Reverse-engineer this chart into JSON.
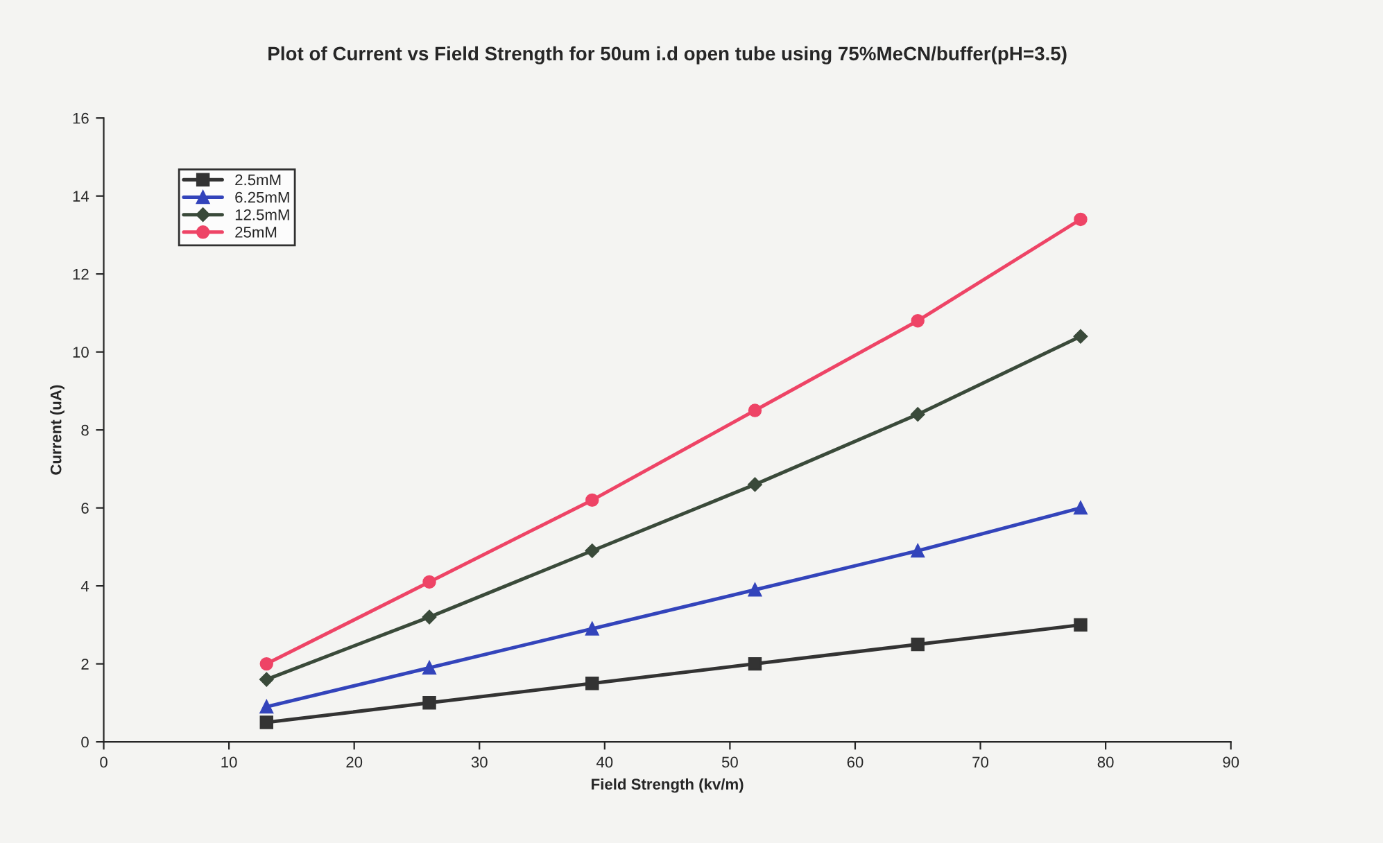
{
  "chart_data": {
    "type": "line",
    "title": "Plot of Current vs Field Strength for 50um i.d open tube using 75%MeCN/buffer(pH=3.5)",
    "xlabel": "Field Strength (kv/m)",
    "ylabel": "Current (uA)",
    "x": [
      13,
      26,
      39,
      52,
      65,
      78
    ],
    "series": [
      {
        "name": "2.5mM",
        "color": "#333333",
        "marker": "square",
        "values": [
          0.5,
          1.0,
          1.5,
          2.0,
          2.5,
          3.0
        ]
      },
      {
        "name": "6.25mM",
        "color": "#3344bb",
        "marker": "triangle",
        "values": [
          0.9,
          1.9,
          2.9,
          3.9,
          4.9,
          6.0
        ]
      },
      {
        "name": "12.5mM",
        "color": "#3a4a3a",
        "marker": "diamond",
        "values": [
          1.6,
          3.2,
          4.9,
          6.6,
          8.4,
          10.4
        ]
      },
      {
        "name": "25mM",
        "color": "#ee4466",
        "marker": "circle",
        "values": [
          2.0,
          4.1,
          6.2,
          8.5,
          10.8,
          13.4
        ]
      }
    ],
    "xlim": [
      0,
      90
    ],
    "xticks": [
      0,
      10,
      20,
      30,
      40,
      50,
      60,
      70,
      80,
      90
    ],
    "ylim": [
      0,
      16
    ],
    "yticks": [
      0,
      2,
      4,
      6,
      8,
      10,
      12,
      14,
      16
    ],
    "grid": false,
    "legend": "top left",
    "line_style": "solid"
  }
}
